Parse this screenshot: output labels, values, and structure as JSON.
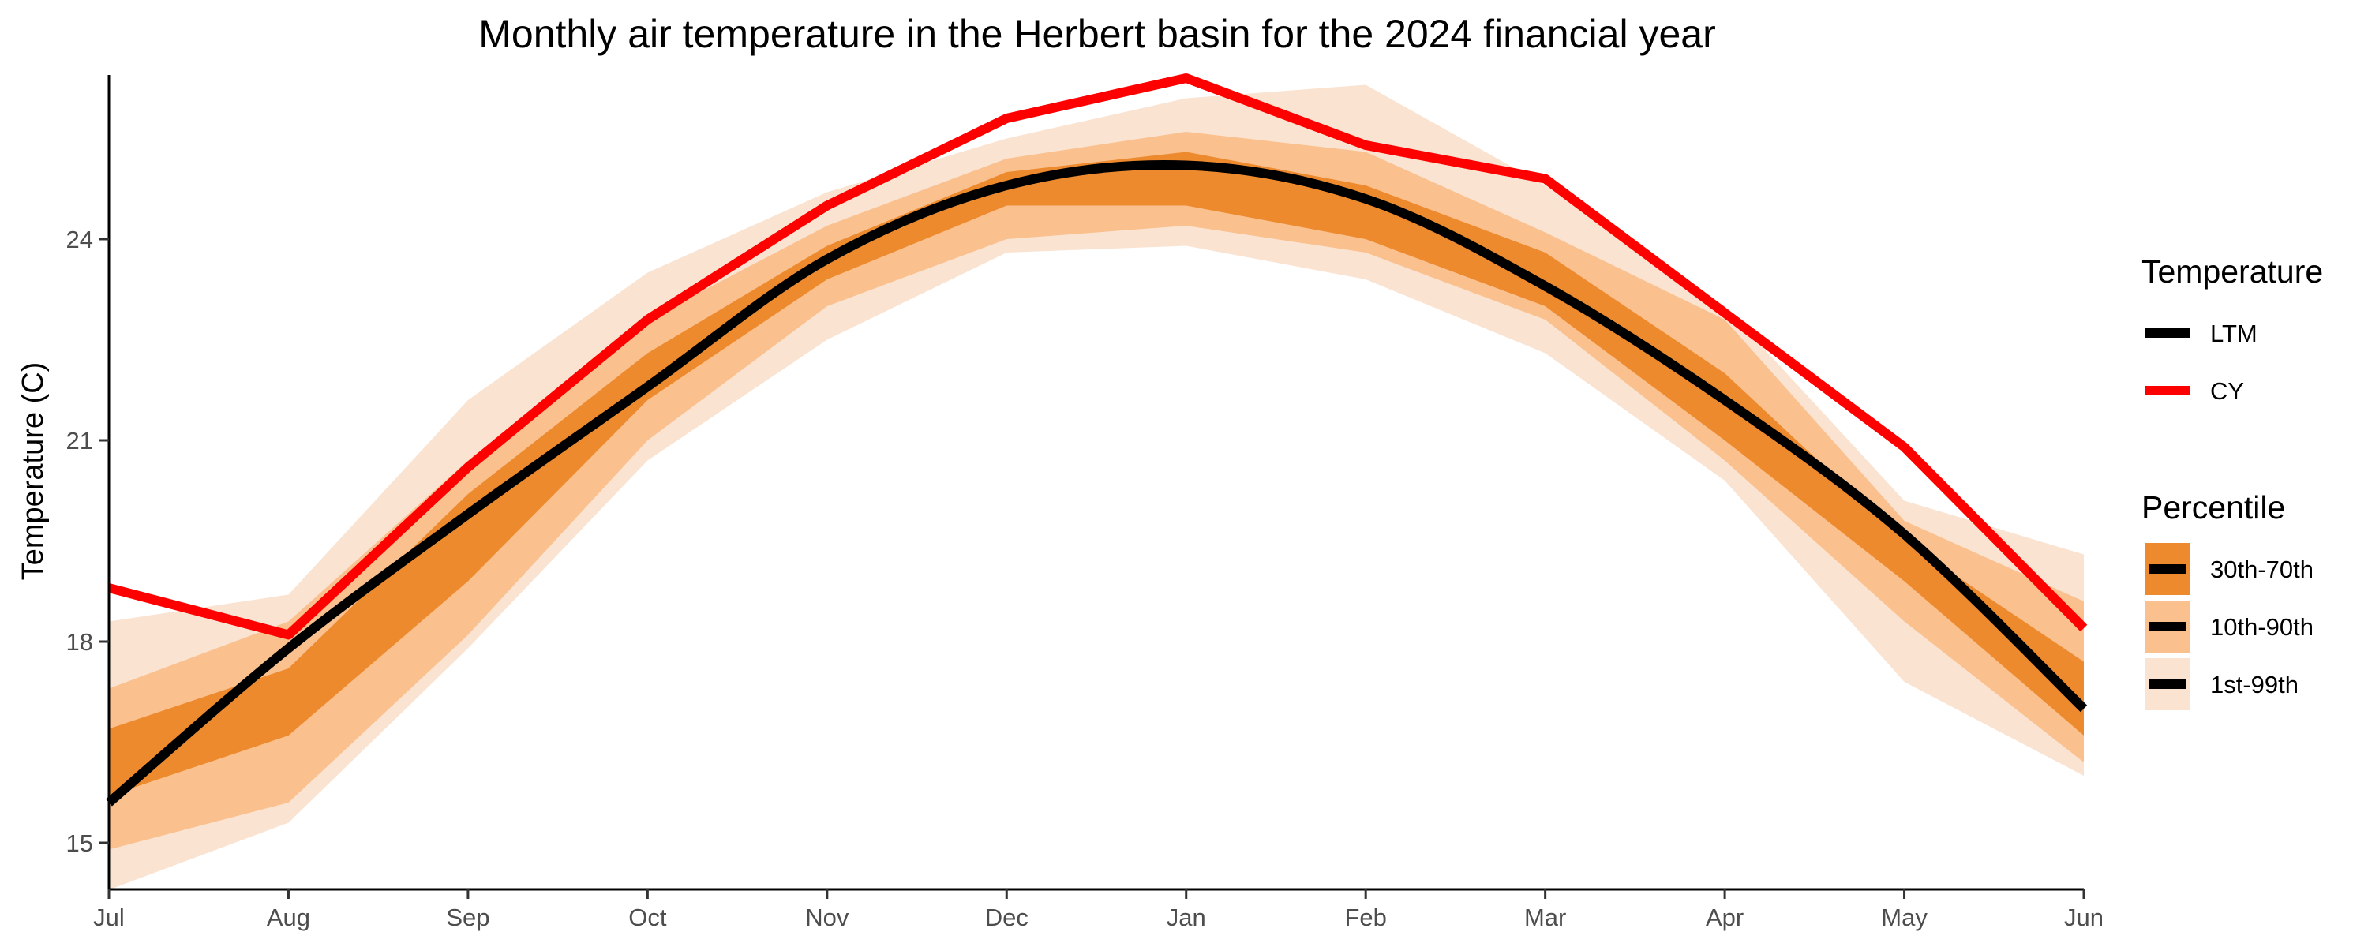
{
  "chart_data": {
    "type": "line",
    "title": "Monthly air temperature in the Herbert basin for the 2024 financial year",
    "xlabel": "",
    "ylabel": "Temperature (C)",
    "categories": [
      "Jul",
      "Aug",
      "Sep",
      "Oct",
      "Nov",
      "Dec",
      "Jan",
      "Feb",
      "Mar",
      "Apr",
      "May",
      "Jun"
    ],
    "ylim": [
      14.3,
      26.4
    ],
    "yticks": [
      15,
      18,
      21,
      24
    ],
    "grid": false,
    "legend_position": "right",
    "series": [
      {
        "name": "LTM",
        "color": "#000000",
        "values": [
          15.6,
          17.9,
          19.9,
          21.8,
          23.7,
          24.8,
          25.1,
          24.6,
          23.3,
          21.6,
          19.6,
          17.0
        ]
      },
      {
        "name": "CY",
        "color": "#ff0000",
        "values": [
          18.8,
          18.1,
          20.6,
          22.8,
          24.5,
          25.8,
          26.4,
          25.4,
          24.9,
          22.9,
          20.9,
          18.2
        ]
      }
    ],
    "bands": [
      {
        "name": "1st-99th",
        "color": "#fae3d1",
        "lower": [
          14.3,
          15.3,
          17.9,
          20.7,
          22.5,
          23.8,
          23.9,
          23.4,
          22.3,
          20.4,
          17.4,
          16.0
        ],
        "upper": [
          18.3,
          18.7,
          21.6,
          23.5,
          24.7,
          25.5,
          26.1,
          26.3,
          24.8,
          23.0,
          20.1,
          19.3
        ]
      },
      {
        "name": "10th-90th",
        "color": "#fac08e",
        "lower": [
          14.9,
          15.6,
          18.1,
          21.0,
          23.0,
          24.0,
          24.2,
          23.8,
          22.8,
          20.7,
          18.3,
          16.2
        ],
        "upper": [
          17.3,
          18.3,
          20.7,
          22.8,
          24.2,
          25.2,
          25.6,
          25.3,
          24.1,
          22.8,
          19.8,
          18.6
        ]
      },
      {
        "name": "30th-70th",
        "color": "#ee8a2e",
        "lower": [
          15.7,
          16.6,
          18.9,
          21.6,
          23.4,
          24.5,
          24.5,
          24.0,
          23.0,
          21.0,
          18.9,
          16.6
        ],
        "upper": [
          16.7,
          17.6,
          20.2,
          22.3,
          23.9,
          25.0,
          25.3,
          24.8,
          23.8,
          22.0,
          19.5,
          17.7
        ]
      }
    ],
    "legend": {
      "temperature_title": "Temperature",
      "percentile_title": "Percentile"
    }
  }
}
